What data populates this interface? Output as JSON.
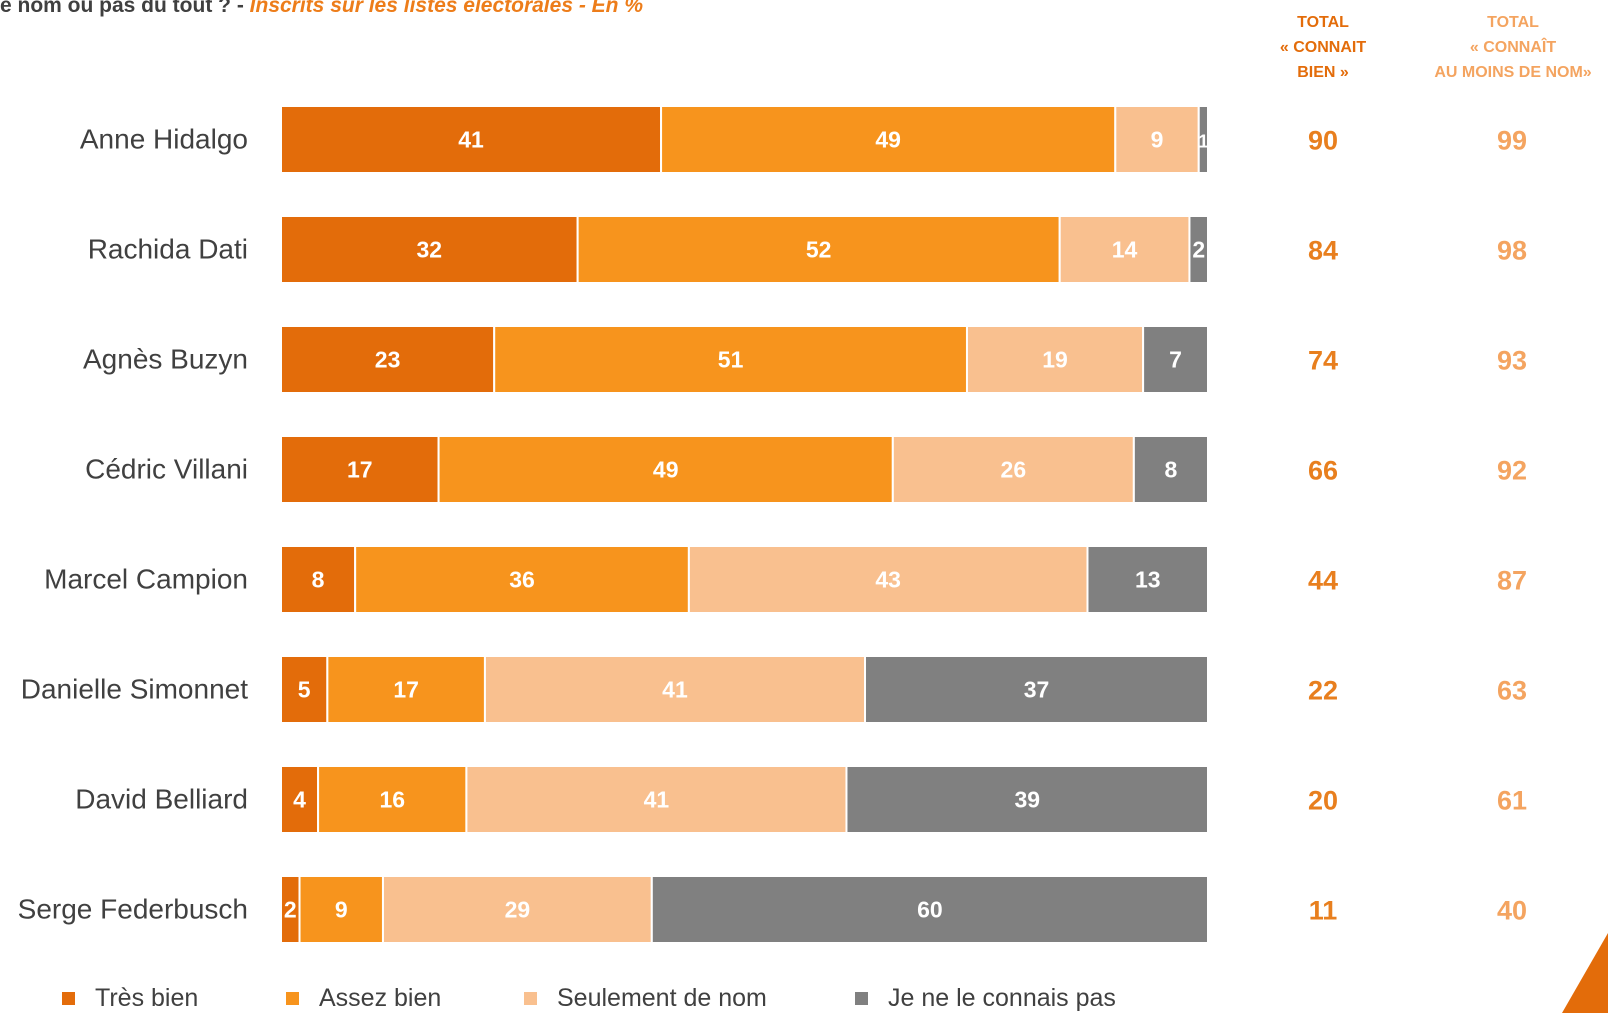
{
  "header": {
    "question_main": "e nom ou pas du tout ? - ",
    "question_sub": "Inscrits sur les listes électorales - En %",
    "col_bien": [
      "TOTAL",
      "« CONNAIT",
      "BIEN »"
    ],
    "col_nom": [
      "TOTAL",
      "« CONNAÎT",
      "AU MOINS DE NOM»"
    ]
  },
  "colors": {
    "tres_bien": "#E36C0A",
    "assez_bien": "#F7941D",
    "seulement_nom": "#F9C08F",
    "ne_connais_pas": "#808080",
    "total_bien": "#E87F1E",
    "total_nom": "#F4A460"
  },
  "chart_data": {
    "type": "bar",
    "orientation": "horizontal",
    "stacked": true,
    "categories": [
      "Anne Hidalgo",
      "Rachida Dati",
      "Agnès Buzyn",
      "Cédric Villani",
      "Marcel Campion",
      "Danielle Simonnet",
      "David Belliard",
      "Serge Federbusch"
    ],
    "series": [
      {
        "name": "Très bien",
        "values": [
          41,
          32,
          23,
          17,
          8,
          5,
          4,
          2
        ]
      },
      {
        "name": "Assez bien",
        "values": [
          49,
          52,
          51,
          49,
          36,
          17,
          16,
          9
        ]
      },
      {
        "name": "Seulement de nom",
        "values": [
          9,
          14,
          19,
          26,
          43,
          41,
          41,
          29
        ]
      },
      {
        "name": "Je ne le connais pas",
        "values": [
          1,
          2,
          7,
          8,
          13,
          37,
          39,
          60
        ]
      }
    ],
    "totals_connait_bien": [
      90,
      84,
      74,
      66,
      44,
      22,
      20,
      11
    ],
    "totals_connait_de_nom": [
      99,
      98,
      93,
      92,
      87,
      63,
      61,
      40
    ],
    "xlim": [
      0,
      100
    ],
    "legend_position": "bottom"
  }
}
